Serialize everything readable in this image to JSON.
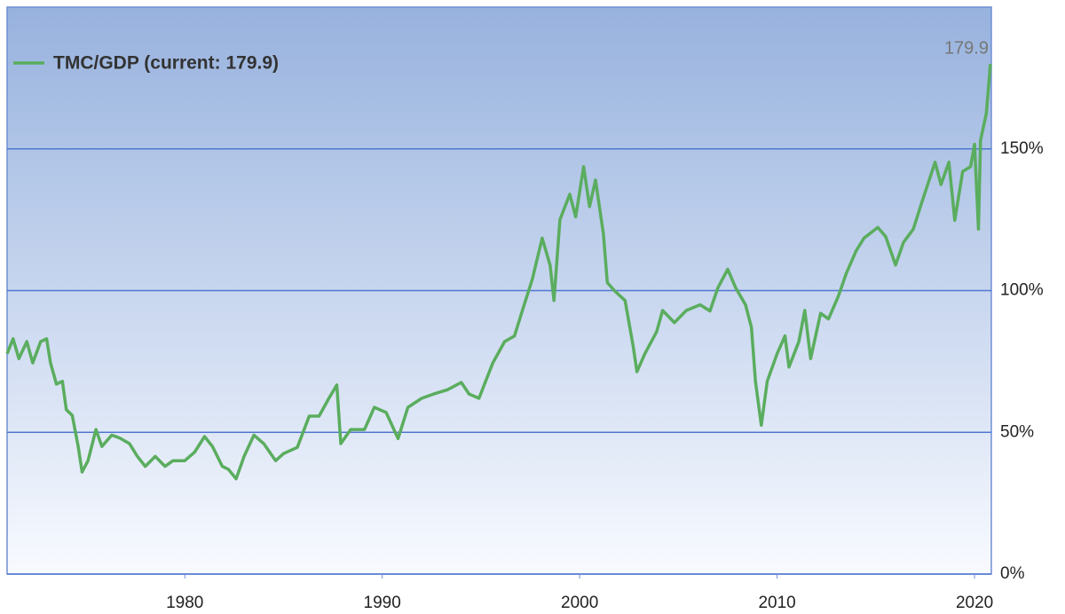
{
  "chart_data": {
    "type": "line",
    "series": [
      {
        "name": "TMC/GDP (current: 179.9)",
        "color": "#5aad5e",
        "x": [
          1971.0,
          1971.3,
          1971.6,
          1972.0,
          1972.3,
          1972.7,
          1973.0,
          1973.2,
          1973.5,
          1973.8,
          1974.0,
          1974.3,
          1974.6,
          1974.8,
          1975.1,
          1975.5,
          1975.8,
          1976.3,
          1976.7,
          1977.2,
          1977.6,
          1978.0,
          1978.5,
          1979.0,
          1979.4,
          1980.0,
          1980.5,
          1981.0,
          1981.4,
          1981.9,
          1982.2,
          1982.6,
          1983.0,
          1983.5,
          1984.0,
          1984.6,
          1985.0,
          1985.7,
          1986.3,
          1986.8,
          1987.3,
          1987.7,
          1987.9,
          1988.4,
          1989.1,
          1989.6,
          1990.2,
          1990.8,
          1991.3,
          1992.0,
          1992.6,
          1993.3,
          1994.0,
          1994.4,
          1994.9,
          1995.6,
          1996.2,
          1996.7,
          1997.1,
          1997.6,
          1998.1,
          1998.5,
          1998.7,
          1999.0,
          1999.5,
          1999.8,
          2000.2,
          2000.5,
          2000.8,
          2001.2,
          2001.4,
          2001.8,
          2002.3,
          2002.7,
          2002.9,
          2003.3,
          2003.9,
          2004.2,
          2004.8,
          2005.4,
          2006.1,
          2006.6,
          2007.0,
          2007.5,
          2007.9,
          2008.4,
          2008.7,
          2008.9,
          2009.2,
          2009.5,
          2010.0,
          2010.4,
          2010.6,
          2011.1,
          2011.4,
          2011.7,
          2012.2,
          2012.6,
          2013.1,
          2013.5,
          2014.0,
          2014.4,
          2015.1,
          2015.5,
          2016.0,
          2016.4,
          2016.9,
          2017.3,
          2018.0,
          2018.3,
          2018.7,
          2019.0,
          2019.4,
          2019.8,
          2020.0,
          2020.2,
          2020.3,
          2020.6,
          2020.8
        ],
        "values": [
          77.7,
          83,
          76,
          82,
          74.5,
          82,
          83,
          74.5,
          67,
          68,
          58,
          56,
          45,
          36,
          40,
          51,
          45,
          49,
          48,
          46,
          41.5,
          38,
          41.5,
          38,
          40,
          40,
          43,
          48.5,
          45,
          38,
          37,
          33.6,
          41.5,
          49,
          46,
          40,
          42.5,
          44.7,
          55.7,
          55.7,
          62,
          66.7,
          46,
          51,
          51,
          58.8,
          57,
          47.8,
          58.8,
          62,
          63.5,
          65,
          67.6,
          63.5,
          62,
          74.5,
          82,
          84,
          93,
          104,
          118.5,
          109,
          96.5,
          125,
          134,
          126,
          143.7,
          129.6,
          139,
          120,
          102.8,
          99.7,
          96.5,
          80.8,
          71.4,
          77.7,
          85.5,
          93,
          88.7,
          93,
          95,
          92.8,
          101,
          107.5,
          101,
          95,
          87,
          68,
          52.5,
          68,
          77.7,
          84,
          73,
          82,
          93,
          76,
          92,
          90,
          98,
          106,
          114,
          118.5,
          122.3,
          119,
          109,
          117,
          121.7,
          130.5,
          145.3,
          137.4,
          145.3,
          124.8,
          142,
          143.7,
          151.6,
          121.7,
          153,
          162.6,
          179.9
        ]
      }
    ],
    "xlim": [
      1971,
      2020.85
    ],
    "xticks": [
      1980,
      1990,
      2000,
      2010,
      2020
    ],
    "ylim": [
      0,
      200
    ],
    "yticks": [
      {
        "value": 0,
        "label": "0%"
      },
      {
        "value": 50,
        "label": "50%"
      },
      {
        "value": 100,
        "label": "100%"
      },
      {
        "value": 150,
        "label": "150%"
      }
    ],
    "grid": true
  }
}
